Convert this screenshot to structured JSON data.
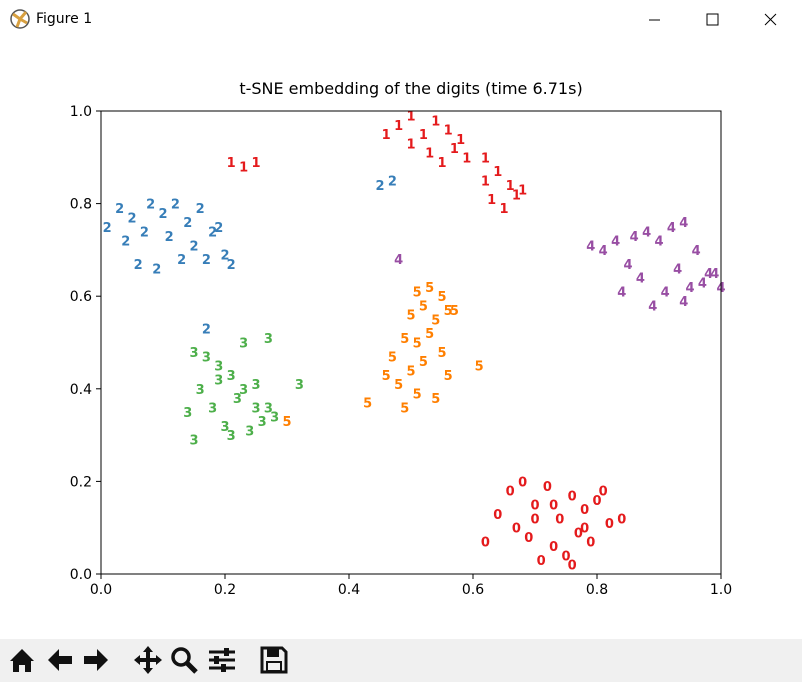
{
  "window": {
    "title": "Figure 1"
  },
  "chart_data": {
    "type": "scatter",
    "title": "t-SNE embedding of the digits (time 6.71s)",
    "xlim": [
      0,
      1
    ],
    "ylim": [
      0,
      1
    ],
    "xticks": [
      {
        "value": 0,
        "label": "0.0"
      },
      0.2,
      0.4,
      0.6,
      0.8,
      {
        "value": 1,
        "label": "1.0"
      }
    ],
    "yticks": [
      {
        "value": 0,
        "label": "0.0"
      },
      0.2,
      0.4,
      0.6,
      0.8,
      {
        "value": 1,
        "label": "1.0"
      }
    ],
    "series": [
      {
        "name": "0",
        "color": "#e41a1c",
        "x": [
          0.66,
          0.68,
          0.7,
          0.72,
          0.74,
          0.76,
          0.78,
          0.8,
          0.82,
          0.84,
          0.64,
          0.69,
          0.73,
          0.77,
          0.71,
          0.75,
          0.79,
          0.67,
          0.7,
          0.76,
          0.62,
          0.81,
          0.73,
          0.78
        ],
        "y": [
          0.18,
          0.2,
          0.15,
          0.19,
          0.12,
          0.17,
          0.14,
          0.16,
          0.11,
          0.12,
          0.13,
          0.08,
          0.06,
          0.09,
          0.03,
          0.04,
          0.07,
          0.1,
          0.12,
          0.02,
          0.07,
          0.18,
          0.15,
          0.1
        ]
      },
      {
        "name": "1",
        "color": "#e41a1c",
        "x": [
          0.48,
          0.5,
          0.52,
          0.54,
          0.56,
          0.58,
          0.5,
          0.53,
          0.57,
          0.46,
          0.55,
          0.59,
          0.62,
          0.64,
          0.66,
          0.68,
          0.63,
          0.65,
          0.67,
          0.21,
          0.23,
          0.25,
          0.62
        ],
        "y": [
          0.97,
          0.99,
          0.95,
          0.98,
          0.96,
          0.94,
          0.93,
          0.91,
          0.92,
          0.95,
          0.89,
          0.9,
          0.85,
          0.87,
          0.84,
          0.83,
          0.81,
          0.79,
          0.82,
          0.89,
          0.88,
          0.89,
          0.9
        ]
      },
      {
        "name": "2",
        "color": "#377eb8",
        "x": [
          0.01,
          0.03,
          0.05,
          0.08,
          0.1,
          0.12,
          0.14,
          0.16,
          0.04,
          0.07,
          0.11,
          0.15,
          0.18,
          0.2,
          0.06,
          0.09,
          0.13,
          0.17,
          0.21,
          0.19,
          0.45,
          0.47,
          0.17
        ],
        "y": [
          0.75,
          0.79,
          0.77,
          0.8,
          0.78,
          0.8,
          0.76,
          0.79,
          0.72,
          0.74,
          0.73,
          0.71,
          0.74,
          0.69,
          0.67,
          0.66,
          0.68,
          0.68,
          0.67,
          0.75,
          0.84,
          0.85,
          0.53
        ]
      },
      {
        "name": "3",
        "color": "#4daf4a",
        "x": [
          0.15,
          0.17,
          0.19,
          0.21,
          0.23,
          0.25,
          0.27,
          0.16,
          0.18,
          0.22,
          0.26,
          0.14,
          0.2,
          0.24,
          0.28,
          0.15,
          0.21,
          0.25,
          0.32,
          0.27,
          0.23,
          0.19
        ],
        "y": [
          0.48,
          0.47,
          0.45,
          0.43,
          0.4,
          0.41,
          0.36,
          0.4,
          0.36,
          0.38,
          0.33,
          0.35,
          0.32,
          0.31,
          0.34,
          0.29,
          0.3,
          0.36,
          0.41,
          0.51,
          0.5,
          0.42
        ]
      },
      {
        "name": "4",
        "color": "#984ea3",
        "x": [
          0.79,
          0.81,
          0.83,
          0.86,
          0.88,
          0.9,
          0.92,
          0.94,
          0.96,
          0.98,
          1.0,
          0.85,
          0.87,
          0.91,
          0.93,
          0.95,
          0.97,
          0.99,
          0.84,
          0.89,
          0.94,
          0.48
        ],
        "y": [
          0.71,
          0.7,
          0.72,
          0.73,
          0.74,
          0.72,
          0.75,
          0.76,
          0.7,
          0.65,
          0.62,
          0.67,
          0.64,
          0.61,
          0.66,
          0.62,
          0.63,
          0.65,
          0.61,
          0.58,
          0.59,
          0.68
        ]
      },
      {
        "name": "5",
        "color": "#ff7f00",
        "x": [
          0.51,
          0.53,
          0.55,
          0.5,
          0.52,
          0.54,
          0.56,
          0.49,
          0.51,
          0.53,
          0.55,
          0.47,
          0.5,
          0.52,
          0.56,
          0.48,
          0.51,
          0.54,
          0.46,
          0.49,
          0.61,
          0.43,
          0.3,
          0.57
        ],
        "y": [
          0.61,
          0.62,
          0.6,
          0.56,
          0.58,
          0.55,
          0.57,
          0.51,
          0.5,
          0.52,
          0.48,
          0.47,
          0.44,
          0.46,
          0.43,
          0.41,
          0.39,
          0.38,
          0.43,
          0.36,
          0.45,
          0.37,
          0.33,
          0.57
        ]
      }
    ]
  }
}
